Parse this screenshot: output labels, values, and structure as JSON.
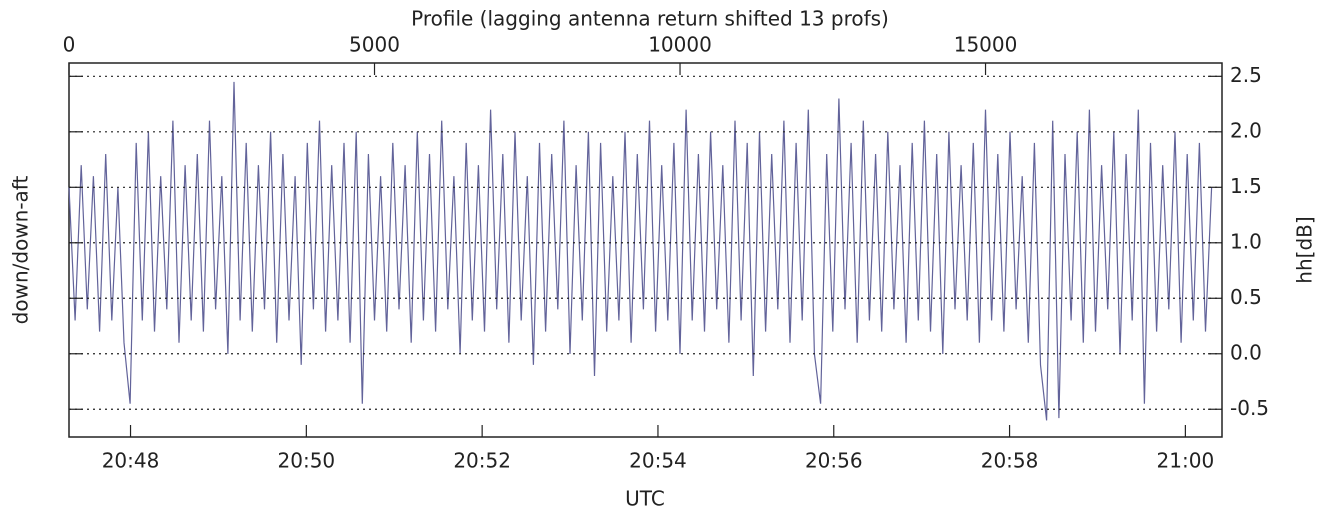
{
  "chart_data": {
    "type": "line",
    "title": "Profile (lagging antenna return shifted 13 profs)",
    "x_label": "UTC",
    "y_label": "down/down-aft",
    "y2_label": "hh[dB]",
    "xlim": [
      0,
      18870
    ],
    "xticks": [
      0,
      5000,
      10000,
      15000
    ],
    "x2lim": [
      74838,
      75625
    ],
    "x2ticks": [
      {
        "value": 74880,
        "label": "20:48"
      },
      {
        "value": 75000,
        "label": "20:50"
      },
      {
        "value": 75120,
        "label": "20:52"
      },
      {
        "value": 75240,
        "label": "20:54"
      },
      {
        "value": 75360,
        "label": "20:56"
      },
      {
        "value": 75480,
        "label": "20:58"
      },
      {
        "value": 75600,
        "label": "21:00"
      }
    ],
    "ylim": [
      -0.75,
      2.62
    ],
    "yticks": [
      -0.5,
      {
        "value": 0,
        "label": "0.0"
      },
      0.5,
      {
        "value": 1,
        "label": "1.0"
      },
      1.5,
      {
        "value": 2,
        "label": "2.0"
      },
      2.5
    ],
    "grid": true,
    "color": "#62639a",
    "x": [
      0,
      100,
      200,
      300,
      400,
      500,
      600,
      700,
      800,
      900,
      1000,
      1100,
      1200,
      1300,
      1400,
      1500,
      1600,
      1700,
      1800,
      1900,
      2000,
      2100,
      2200,
      2300,
      2400,
      2500,
      2600,
      2700,
      2800,
      2900,
      3000,
      3100,
      3200,
      3300,
      3400,
      3500,
      3600,
      3700,
      3800,
      3900,
      4000,
      4100,
      4200,
      4300,
      4400,
      4500,
      4600,
      4700,
      4800,
      4900,
      5000,
      5100,
      5200,
      5300,
      5400,
      5500,
      5600,
      5700,
      5800,
      5900,
      6000,
      6100,
      6200,
      6300,
      6400,
      6500,
      6600,
      6700,
      6800,
      6900,
      7000,
      7100,
      7200,
      7300,
      7400,
      7500,
      7600,
      7700,
      7800,
      7900,
      8000,
      8100,
      8200,
      8300,
      8400,
      8500,
      8600,
      8700,
      8800,
      8900,
      9000,
      9100,
      9200,
      9300,
      9400,
      9500,
      9600,
      9700,
      9800,
      9900,
      10000,
      10100,
      10200,
      10300,
      10400,
      10500,
      10600,
      10700,
      10800,
      10900,
      11000,
      11100,
      11200,
      11300,
      11400,
      11500,
      11600,
      11700,
      11800,
      11900,
      12000,
      12100,
      12200,
      12300,
      12400,
      12500,
      12600,
      12700,
      12800,
      12900,
      13000,
      13100,
      13200,
      13300,
      13400,
      13500,
      13600,
      13700,
      13800,
      13900,
      14000,
      14100,
      14200,
      14300,
      14400,
      14500,
      14600,
      14700,
      14800,
      14900,
      15000,
      15100,
      15200,
      15300,
      15400,
      15500,
      15600,
      15700,
      15800,
      15900,
      16000,
      16100,
      16200,
      16300,
      16400,
      16500,
      16600,
      16700,
      16800,
      16900,
      17000,
      17100,
      17200,
      17300,
      17400,
      17500,
      17600,
      17700,
      17800,
      17900,
      18000,
      18100,
      18200,
      18300,
      18400,
      18500,
      18600,
      18700
    ],
    "values": [
      1.5,
      0.3,
      1.7,
      0.4,
      1.6,
      0.2,
      1.8,
      0.3,
      1.5,
      0.1,
      -0.45,
      1.9,
      0.3,
      2.0,
      0.2,
      1.6,
      0.4,
      2.1,
      0.1,
      1.7,
      0.3,
      1.8,
      0.2,
      2.1,
      0.4,
      1.6,
      0.0,
      2.45,
      0.3,
      1.9,
      0.2,
      1.7,
      0.4,
      2.0,
      0.1,
      1.8,
      0.3,
      1.6,
      -0.1,
      1.9,
      0.4,
      2.1,
      0.2,
      1.7,
      0.3,
      1.9,
      0.1,
      2.0,
      -0.45,
      1.8,
      0.3,
      1.6,
      0.2,
      1.9,
      0.4,
      1.7,
      0.1,
      2.0,
      0.3,
      1.8,
      0.2,
      2.1,
      0.4,
      1.6,
      0.0,
      1.9,
      0.3,
      1.7,
      0.2,
      2.2,
      0.4,
      1.8,
      0.1,
      2.0,
      0.3,
      1.6,
      -0.1,
      1.9,
      0.2,
      1.8,
      0.4,
      2.1,
      0.0,
      1.7,
      0.3,
      2.0,
      -0.2,
      1.9,
      0.2,
      1.6,
      0.3,
      2.0,
      0.1,
      1.8,
      0.4,
      2.1,
      0.2,
      1.7,
      0.3,
      1.9,
      0.0,
      2.2,
      0.3,
      1.8,
      0.2,
      2.0,
      0.4,
      1.7,
      0.1,
      2.1,
      0.3,
      1.9,
      -0.2,
      2.0,
      0.2,
      1.8,
      0.4,
      2.1,
      0.1,
      1.9,
      0.3,
      2.2,
      0.0,
      -0.45,
      1.8,
      0.2,
      2.3,
      0.4,
      1.9,
      0.1,
      2.1,
      0.3,
      1.8,
      0.2,
      2.0,
      0.4,
      1.7,
      0.1,
      1.9,
      0.3,
      2.1,
      0.2,
      1.8,
      0.0,
      2.0,
      0.4,
      1.7,
      0.3,
      1.9,
      0.1,
      2.2,
      0.3,
      1.8,
      0.2,
      2.0,
      0.4,
      1.6,
      0.1,
      1.9,
      -0.1,
      -0.6,
      2.1,
      -0.58,
      1.8,
      0.3,
      2.0,
      0.1,
      2.2,
      0.2,
      1.7,
      0.4,
      2.0,
      0.0,
      1.8,
      0.3,
      2.2,
      -0.45,
      1.9,
      0.2,
      1.7,
      0.4,
      2.0,
      0.1,
      1.8,
      0.3,
      1.9,
      0.2,
      1.5
    ]
  }
}
